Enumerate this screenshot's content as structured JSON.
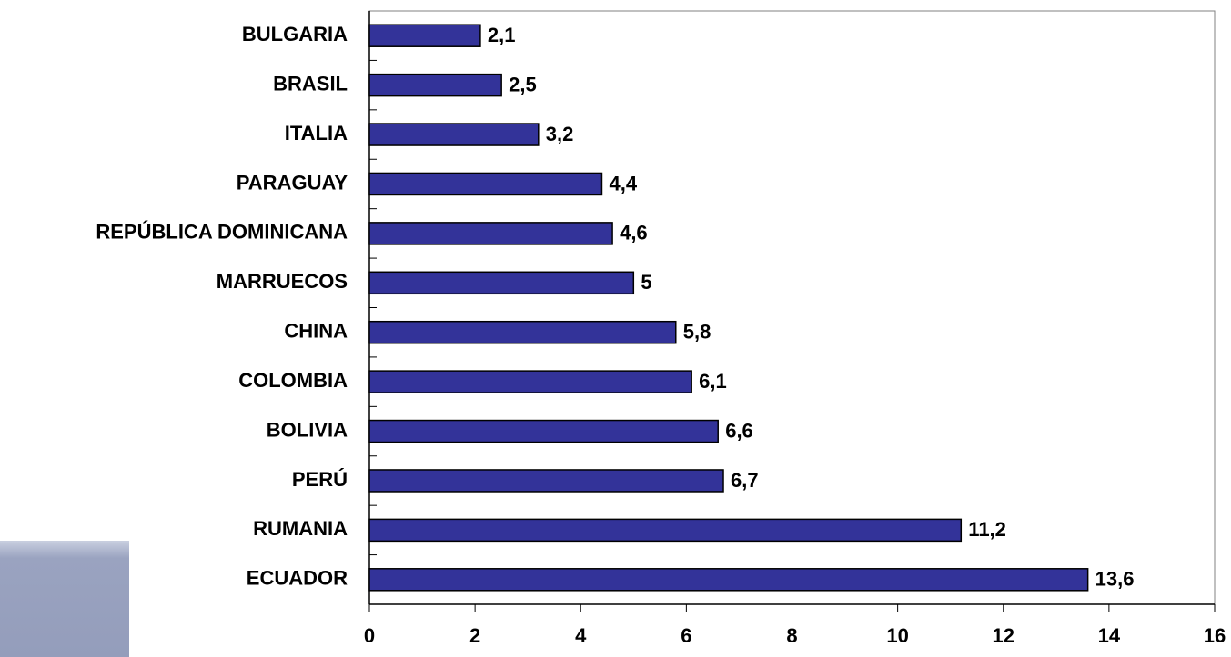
{
  "chart_data": {
    "type": "hbar",
    "categories": [
      "BULGARIA",
      "BRASIL",
      "ITALIA",
      "PARAGUAY",
      "REPÚBLICA DOMINICANA",
      "MARRUECOS",
      "CHINA",
      "COLOMBIA",
      "BOLIVIA",
      "PERÚ",
      "RUMANIA",
      "ECUADOR"
    ],
    "values": [
      2.1,
      2.5,
      3.2,
      4.4,
      4.6,
      5,
      5.8,
      6.1,
      6.6,
      6.7,
      11.2,
      13.6
    ],
    "value_labels": [
      "2,1",
      "2,5",
      "3,2",
      "4,4",
      "4,6",
      "5",
      "5,8",
      "6,1",
      "6,6",
      "6,7",
      "11,2",
      "13,6"
    ],
    "color": "#333399",
    "xlim": [
      0,
      16
    ],
    "xticks": [
      0,
      2,
      4,
      6,
      8,
      10,
      12,
      14,
      16
    ]
  }
}
